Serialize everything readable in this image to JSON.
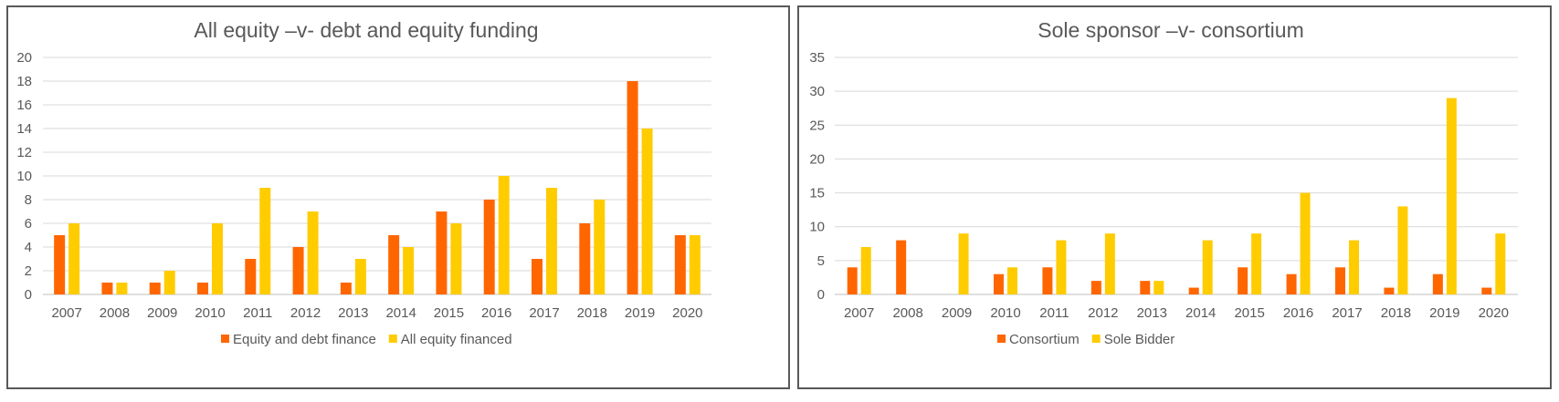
{
  "chart_data": [
    {
      "type": "bar",
      "title": "All equity –v- debt and equity funding",
      "categories": [
        "2007",
        "2008",
        "2009",
        "2010",
        "2011",
        "2012",
        "2013",
        "2014",
        "2015",
        "2016",
        "2017",
        "2018",
        "2019",
        "2020"
      ],
      "series": [
        {
          "name": "Equity and debt finance",
          "color": "#ff6600",
          "values": [
            5,
            1,
            1,
            1,
            3,
            4,
            1,
            5,
            7,
            8,
            3,
            6,
            18,
            5
          ]
        },
        {
          "name": "All equity financed",
          "color": "#ffcc00",
          "values": [
            6,
            1,
            2,
            6,
            9,
            7,
            3,
            4,
            6,
            10,
            9,
            8,
            14,
            5
          ]
        }
      ],
      "ylim": [
        0,
        20
      ],
      "yticks": [
        "0",
        "2",
        "4",
        "6",
        "8",
        "10",
        "12",
        "14",
        "16",
        "18",
        "20"
      ],
      "grid": true,
      "legend": "bottom"
    },
    {
      "type": "bar",
      "title": "Sole sponsor –v- consortium",
      "categories": [
        "2007",
        "2008",
        "2009",
        "2010",
        "2011",
        "2012",
        "2013",
        "2014",
        "2015",
        "2016",
        "2017",
        "2018",
        "2019",
        "2020"
      ],
      "series": [
        {
          "name": "Consortium",
          "color": "#ff6600",
          "values": [
            4,
            8,
            0,
            3,
            4,
            2,
            2,
            1,
            4,
            3,
            4,
            1,
            3,
            1
          ]
        },
        {
          "name": "Sole Bidder",
          "color": "#ffcc00",
          "values": [
            7,
            0,
            9,
            4,
            8,
            9,
            2,
            8,
            9,
            15,
            8,
            13,
            29,
            9
          ]
        }
      ],
      "ylim": [
        0,
        35
      ],
      "yticks": [
        "0",
        "5",
        "10",
        "15",
        "20",
        "25",
        "30",
        "35"
      ],
      "grid": true,
      "legend": "bottom"
    }
  ]
}
